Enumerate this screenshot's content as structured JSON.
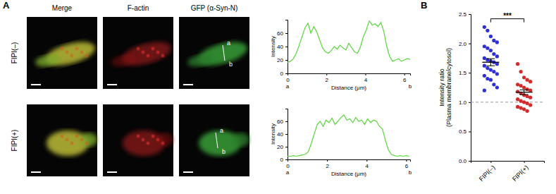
{
  "figure": {
    "panel_labels": [
      "A",
      "B"
    ],
    "columns": [
      "Merge",
      "F-actin",
      "GFP (α-Syn-N)"
    ],
    "rows": [
      "FIPI(–)",
      "FIPI(+)"
    ],
    "line_ends": [
      "a",
      "b"
    ]
  },
  "chart_data": [
    {
      "type": "line",
      "xlabel": "Distance (μm)",
      "ylabel": "Intensity",
      "color": "#5ad63c",
      "x": [
        0,
        0.15,
        0.3,
        0.45,
        0.6,
        0.75,
        0.9,
        1.05,
        1.2,
        1.35,
        1.5,
        1.65,
        1.8,
        1.95,
        2.1,
        2.25,
        2.4,
        2.55,
        2.7,
        2.85,
        3,
        3.15,
        3.3,
        3.45,
        3.6,
        3.75,
        3.9,
        4.05,
        4.2,
        4.35,
        4.5,
        4.65,
        4.8,
        4.95,
        5.1,
        5.25,
        5.4,
        5.55,
        5.7,
        5.85,
        6,
        6.15,
        6.3
      ],
      "values": [
        16,
        18,
        22,
        30,
        42,
        55,
        68,
        75,
        60,
        70,
        62,
        50,
        38,
        32,
        30,
        34,
        40,
        36,
        42,
        38,
        35,
        45,
        38,
        32,
        30,
        40,
        55,
        65,
        78,
        72,
        74,
        70,
        76,
        62,
        40,
        25,
        18,
        20,
        22,
        18,
        20,
        22,
        21
      ],
      "xlim": [
        0,
        6.3
      ],
      "xticks": [
        0,
        2,
        4,
        6
      ],
      "ylim": [
        0,
        80
      ],
      "yticks": [
        0,
        20,
        40,
        60
      ],
      "annotations": [
        {
          "text": "a",
          "x": 0
        },
        {
          "text": "b",
          "x": 6.3
        }
      ]
    },
    {
      "type": "dot",
      "ylabel": "Intensity ratio (Plasma membrane/cytosol)",
      "categories": [
        "FIPI(–)",
        "FIPI(+)"
      ],
      "colors": [
        "#2f2fd6",
        "#d12b2b"
      ],
      "values": [
        [
          2.28,
          2.22,
          2.12,
          2.05,
          2.02,
          1.95,
          1.92,
          1.88,
          1.82,
          1.78,
          1.75,
          1.72,
          1.7,
          1.68,
          1.65,
          1.62,
          1.58,
          1.55,
          1.52,
          1.48,
          1.45,
          1.4,
          1.38,
          1.3,
          1.25,
          1.2
        ],
        [
          1.65,
          1.52,
          1.42,
          1.38,
          1.35,
          1.3,
          1.28,
          1.25,
          1.22,
          1.2,
          1.18,
          1.15,
          1.12,
          1.1,
          1.08,
          1.05,
          1.02,
          1.0,
          0.98,
          0.95,
          0.92,
          0.9,
          0.88,
          0.85
        ]
      ],
      "means": [
        1.68,
        1.17
      ],
      "errors": [
        0.06,
        0.04
      ],
      "reference_line": 1,
      "ylim": [
        0,
        2.5
      ],
      "yticks": [
        {
          "value": 0,
          "label": "0.0"
        },
        {
          "value": 0.5,
          "label": "0.5"
        },
        {
          "value": 1,
          "label": "1.0"
        },
        {
          "value": 1.5,
          "label": "1.5"
        },
        {
          "value": 2,
          "label": "2.0"
        },
        {
          "value": 2.5,
          "label": "2.5"
        }
      ],
      "annotations": [
        {
          "text": "***",
          "y": 2.42
        }
      ]
    },
    {
      "type": "line",
      "xlabel": "Distance (μm)",
      "ylabel": "Intensity",
      "color": "#5ad63c",
      "x": [
        0,
        0.15,
        0.3,
        0.45,
        0.6,
        0.75,
        0.9,
        1.05,
        1.2,
        1.35,
        1.5,
        1.65,
        1.8,
        1.95,
        2.1,
        2.25,
        2.4,
        2.55,
        2.7,
        2.85,
        3,
        3.15,
        3.3,
        3.45,
        3.6,
        3.75,
        3.9,
        4.05,
        4.2,
        4.35,
        4.5,
        4.65,
        4.8,
        4.95,
        5.1,
        5.25,
        5.4,
        5.55,
        5.7,
        5.85,
        6,
        6.15
      ],
      "values": [
        5,
        5,
        6,
        5,
        6,
        7,
        8,
        12,
        25,
        40,
        55,
        60,
        52,
        62,
        58,
        65,
        55,
        60,
        66,
        70,
        62,
        64,
        58,
        66,
        60,
        62,
        55,
        64,
        58,
        62,
        60,
        52,
        48,
        30,
        15,
        8,
        6,
        5,
        6,
        5,
        6,
        5
      ],
      "xlim": [
        0,
        6.2
      ],
      "xticks": [
        0,
        2,
        4,
        6
      ],
      "ylim": [
        0,
        80
      ],
      "yticks": [
        0,
        20,
        40,
        60
      ],
      "annotations": [
        {
          "text": "a",
          "x": 0
        },
        {
          "text": "b",
          "x": 6.2
        }
      ]
    }
  ]
}
